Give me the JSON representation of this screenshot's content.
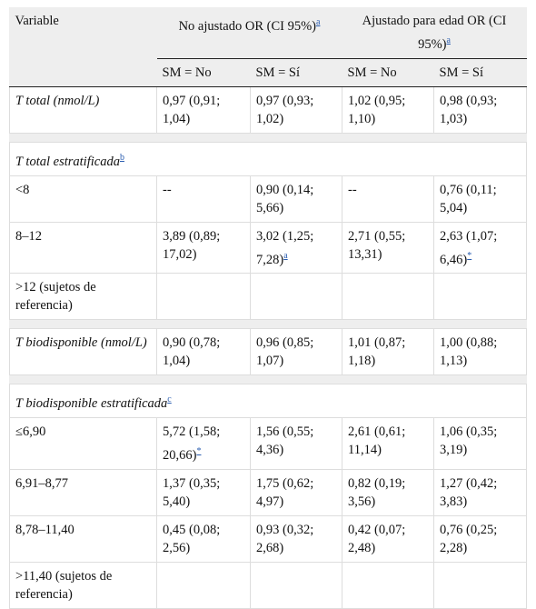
{
  "header": {
    "variable": "Variable",
    "groups": [
      {
        "text": "No ajustado OR (CI 95%)",
        "note": "a"
      },
      {
        "text": "Ajustado para edad OR (CI 95%)",
        "note": "a"
      }
    ],
    "subheaders": [
      "SM = No",
      "SM = Sí",
      "SM = No",
      "SM = Sí"
    ]
  },
  "rows": [
    {
      "label": "T total (nmol/L)",
      "italic": true,
      "cells": [
        "0,97 (0,91; 1,04)",
        "0,97 (0,93; 1,02)",
        "1,02 (0,95; 1,10)",
        "0,98 (0,93; 1,03)"
      ]
    },
    {
      "label": "T total estratificada",
      "note": "b",
      "italic": true,
      "section": true
    },
    {
      "label": "<8",
      "cells": [
        "--",
        "0,90 (0,14; 5,66)",
        "--",
        "0,76 (0,11; 5,04)"
      ]
    },
    {
      "label": "8–12",
      "cells": [
        "3,89 (0,89; 17,02)",
        {
          "text": "3,02 (1,25; 7,28)",
          "note": "a"
        },
        "2,71 (0,55; 13,31)",
        {
          "text": "2,63 (1,07; 6,46)",
          "note": "*"
        }
      ]
    },
    {
      "label": ">12 (sujetos de referencia)",
      "cells": [
        null,
        null,
        null,
        null
      ]
    },
    {
      "label": "T biodisponible (nmol/L)",
      "italic": true,
      "cells": [
        "0,90 (0,78; 1,04)",
        "0,96 (0,85; 1,07)",
        "1,01 (0,87; 1,18)",
        "1,00 (0,88; 1,13)"
      ]
    },
    {
      "label": "T biodisponible estratificada",
      "note": "c",
      "italic": true,
      "section": true
    },
    {
      "label": "≤6,90",
      "cells": [
        {
          "text": "5,72 (1,58; 20,66)",
          "note": "*"
        },
        "1,56 (0,55; 4,36)",
        "2,61 (0,61; 11,14)",
        "1,06 (0,35; 3,19)"
      ]
    },
    {
      "label": "6,91–8,77",
      "cells": [
        "1,37 (0,35; 5,40)",
        "1,75 (0,62; 4,97)",
        "0,82 (0,19; 3,56)",
        "1,27 (0,42; 3,83)"
      ]
    },
    {
      "label": "8,78–11,40",
      "cells": [
        "0,45 (0,08; 2,56)",
        "0,93 (0,32; 2,68)",
        "0,42 (0,07; 2,48)",
        "0,76 (0,25; 2,28)"
      ]
    },
    {
      "label": ">11,40 (sujetos de referencia)",
      "cells": [
        null,
        null,
        null,
        null
      ]
    }
  ]
}
